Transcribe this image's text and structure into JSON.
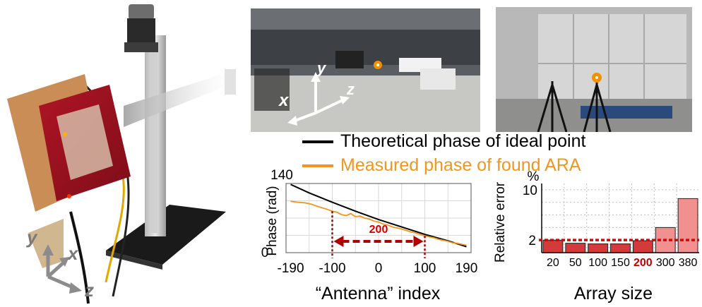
{
  "colors": {
    "theory": "#000000",
    "measured": "#f0961e",
    "bar": "#d43a3a",
    "bar_light": "#f28f8f",
    "bar_highlight": "#c00000",
    "threshold": "#e00000",
    "arrow": "#b00000",
    "grid": "#d9d9d9"
  },
  "rig": {
    "axis_labels": {
      "y": "y",
      "x": "x",
      "z": "z"
    }
  },
  "hall_photo": {
    "axis_labels": {
      "y": "y",
      "x": "x",
      "z": "z"
    },
    "marker_icon": "target-dot-icon"
  },
  "cabinet_photo": {
    "marker_icon": "target-dot-icon"
  },
  "legend": {
    "theory_label": "Theoretical phase of ideal point",
    "measured_label": "Measured phase of found ARA"
  },
  "chart_data": [
    {
      "type": "line",
      "xlabel": "“Antenna” index",
      "ylabel": "Phase (rad)",
      "xlim": [
        -200,
        200
      ],
      "ylim": [
        0,
        140
      ],
      "x_ticks": [
        "-190",
        "-100",
        "0",
        "100",
        "190"
      ],
      "y_ticks": [
        "0",
        "140"
      ],
      "grid": true,
      "series": [
        {
          "style": "theory",
          "x": [
            -190,
            -150,
            -100,
            -50,
            0,
            50,
            100,
            150,
            190
          ],
          "y": [
            138,
            121,
            102,
            84,
            67,
            52,
            37,
            24,
            12
          ]
        },
        {
          "style": "measured",
          "x": [
            -190,
            -175,
            -160,
            -145,
            -130,
            -115,
            -100,
            -90,
            -80,
            -70,
            -60,
            -50,
            -40,
            -30,
            -20,
            -10,
            0,
            10,
            20,
            30,
            40,
            50,
            60,
            70,
            80,
            90,
            100,
            110,
            120,
            130,
            140,
            150,
            160,
            170,
            180,
            190
          ],
          "y": [
            104,
            102,
            101,
            98,
            93,
            89,
            84,
            82,
            77,
            75,
            79,
            73,
            74,
            70,
            68,
            64,
            62,
            58,
            56,
            52,
            50,
            48,
            45,
            42,
            40,
            37,
            34,
            32,
            30,
            27,
            25,
            23,
            20,
            19,
            17,
            15
          ]
        }
      ],
      "annotation": {
        "label": "200",
        "from": -100,
        "to": 100
      }
    },
    {
      "type": "bar",
      "categories": [
        "20",
        "50",
        "100",
        "150",
        "200",
        "300",
        "380"
      ],
      "highlight_category": "200",
      "values": [
        2.0,
        1.5,
        1.4,
        1.4,
        1.9,
        4.0,
        8.6
      ],
      "ylabel": "Relative error",
      "unit_label": "%",
      "xlabel": "Array size",
      "ylim": [
        0,
        11
      ],
      "y_ticks": [
        "2",
        "10"
      ],
      "threshold": 2,
      "grid": true
    }
  ]
}
